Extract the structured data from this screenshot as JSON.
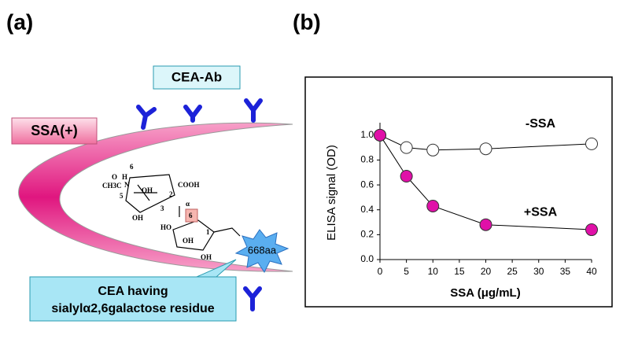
{
  "panels": {
    "a": "(a)",
    "b": "(b)"
  },
  "diagram": {
    "antibody_label": "CEA-Ab",
    "lectin_label": "SSA(+)",
    "cea_label": [
      "CEA having",
      "sialylα2,6galactose residue"
    ],
    "protein_label": "668aa",
    "structure": {
      "cooh": "COOH",
      "acetyl": "CH3C",
      "oh": "OH",
      "o": "O",
      "n": "N",
      "h": "H",
      "alpha": "α",
      "linkage": "6",
      "ho": "HO",
      "positions": [
        "1",
        "2",
        "3",
        "4",
        "5",
        "6",
        "7",
        "8",
        "9"
      ]
    }
  },
  "chart_data": {
    "type": "line",
    "x_label": "SSA (μg/mL)",
    "y_label": "ELISA signal (OD)",
    "x": [
      0,
      5,
      10,
      20,
      40
    ],
    "series": [
      {
        "name": "-SSA",
        "color": "#ffffff",
        "values": [
          1.0,
          0.9,
          0.88,
          0.89,
          0.93
        ]
      },
      {
        "name": "+SSA",
        "color": "#e010a8",
        "values": [
          1.0,
          0.67,
          0.43,
          0.28,
          0.24
        ]
      }
    ],
    "xlim": [
      0,
      40
    ],
    "xticks": [
      0,
      5,
      10,
      15,
      20,
      25,
      30,
      35,
      40
    ],
    "ylim": [
      0,
      1.1
    ],
    "yticks": [
      {
        "value": 0,
        "label": "0.0"
      },
      0.2,
      0.4,
      0.6,
      0.8,
      {
        "value": 1,
        "label": "1.0"
      }
    ]
  }
}
